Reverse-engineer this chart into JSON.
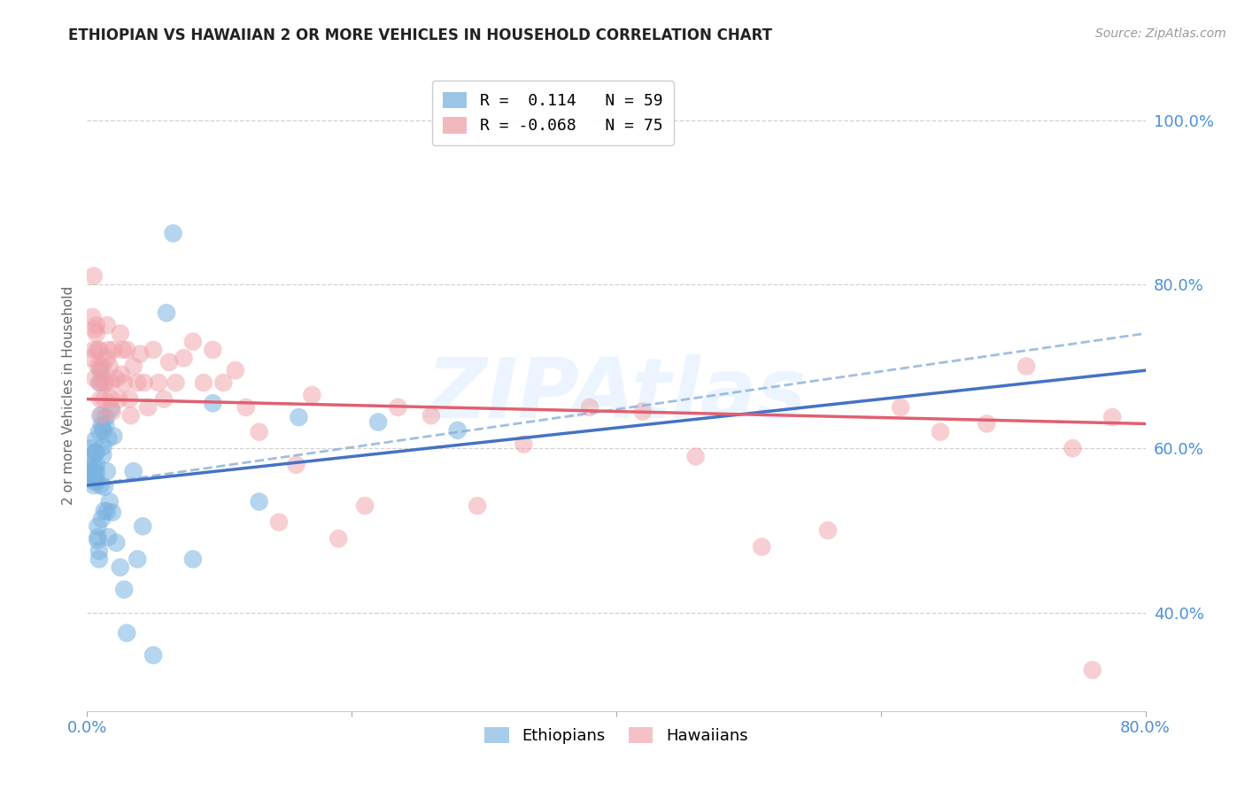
{
  "title": "ETHIOPIAN VS HAWAIIAN 2 OR MORE VEHICLES IN HOUSEHOLD CORRELATION CHART",
  "source": "Source: ZipAtlas.com",
  "ylabel": "2 or more Vehicles in Household",
  "watermark": "ZIPAtlas",
  "xlim": [
    0.0,
    0.8
  ],
  "ylim": [
    0.28,
    1.05
  ],
  "xtick_positions": [
    0.0,
    0.2,
    0.4,
    0.6,
    0.8
  ],
  "xticklabels": [
    "0.0%",
    "",
    "",
    "",
    "80.0%"
  ],
  "ytick_positions": [
    0.4,
    0.6,
    0.8,
    1.0
  ],
  "yticklabels": [
    "40.0%",
    "60.0%",
    "80.0%",
    "100.0%"
  ],
  "legend_r_eth": "R =  0.114",
  "legend_n_eth": "N = 59",
  "legend_r_haw": "R = -0.068",
  "legend_n_haw": "N = 75",
  "color_eth": "#7ab3e0",
  "color_haw": "#f0a0a8",
  "color_eth_line": "#4472c4",
  "color_haw_line": "#e06070",
  "color_eth_dashed": "#8ab0d8",
  "color_axis_labels": "#4a90d9",
  "color_title": "#222222",
  "background": "#ffffff",
  "grid_color": "#cccccc",
  "eth_x": [
    0.002,
    0.003,
    0.003,
    0.004,
    0.004,
    0.005,
    0.005,
    0.005,
    0.006,
    0.006,
    0.006,
    0.006,
    0.007,
    0.007,
    0.007,
    0.007,
    0.008,
    0.008,
    0.008,
    0.009,
    0.009,
    0.009,
    0.01,
    0.01,
    0.01,
    0.01,
    0.011,
    0.011,
    0.012,
    0.012,
    0.012,
    0.013,
    0.013,
    0.014,
    0.014,
    0.015,
    0.015,
    0.016,
    0.016,
    0.017,
    0.018,
    0.019,
    0.02,
    0.022,
    0.025,
    0.028,
    0.03,
    0.035,
    0.038,
    0.042,
    0.05,
    0.06,
    0.065,
    0.08,
    0.095,
    0.13,
    0.16,
    0.22,
    0.28
  ],
  "eth_y": [
    0.575,
    0.59,
    0.6,
    0.58,
    0.57,
    0.565,
    0.56,
    0.555,
    0.575,
    0.595,
    0.61,
    0.565,
    0.57,
    0.58,
    0.595,
    0.56,
    0.505,
    0.488,
    0.492,
    0.475,
    0.465,
    0.62,
    0.64,
    0.68,
    0.695,
    0.555,
    0.514,
    0.628,
    0.622,
    0.602,
    0.592,
    0.553,
    0.524,
    0.638,
    0.628,
    0.572,
    0.523,
    0.492,
    0.612,
    0.535,
    0.648,
    0.522,
    0.615,
    0.485,
    0.455,
    0.428,
    0.375,
    0.572,
    0.465,
    0.505,
    0.348,
    0.765,
    0.862,
    0.465,
    0.655,
    0.535,
    0.638,
    0.632,
    0.622
  ],
  "haw_x": [
    0.003,
    0.004,
    0.005,
    0.005,
    0.006,
    0.006,
    0.007,
    0.007,
    0.008,
    0.008,
    0.009,
    0.009,
    0.01,
    0.01,
    0.011,
    0.012,
    0.013,
    0.013,
    0.014,
    0.015,
    0.015,
    0.016,
    0.017,
    0.018,
    0.018,
    0.019,
    0.02,
    0.022,
    0.024,
    0.025,
    0.026,
    0.027,
    0.028,
    0.03,
    0.032,
    0.033,
    0.035,
    0.038,
    0.04,
    0.043,
    0.046,
    0.05,
    0.054,
    0.058,
    0.062,
    0.067,
    0.073,
    0.08,
    0.088,
    0.095,
    0.103,
    0.112,
    0.12,
    0.13,
    0.145,
    0.158,
    0.17,
    0.19,
    0.21,
    0.235,
    0.26,
    0.295,
    0.33,
    0.38,
    0.42,
    0.46,
    0.51,
    0.56,
    0.615,
    0.645,
    0.68,
    0.71,
    0.745,
    0.76,
    0.775
  ],
  "haw_y": [
    0.71,
    0.76,
    0.81,
    0.72,
    0.685,
    0.745,
    0.75,
    0.74,
    0.72,
    0.7,
    0.68,
    0.72,
    0.7,
    0.66,
    0.64,
    0.7,
    0.68,
    0.66,
    0.68,
    0.75,
    0.71,
    0.72,
    0.7,
    0.68,
    0.66,
    0.645,
    0.72,
    0.685,
    0.66,
    0.74,
    0.69,
    0.72,
    0.68,
    0.72,
    0.66,
    0.64,
    0.7,
    0.68,
    0.715,
    0.68,
    0.65,
    0.72,
    0.68,
    0.66,
    0.705,
    0.68,
    0.71,
    0.73,
    0.68,
    0.72,
    0.68,
    0.695,
    0.65,
    0.62,
    0.51,
    0.58,
    0.665,
    0.49,
    0.53,
    0.65,
    0.64,
    0.53,
    0.605,
    0.65,
    0.645,
    0.59,
    0.48,
    0.5,
    0.65,
    0.62,
    0.63,
    0.7,
    0.6,
    0.33,
    0.638
  ]
}
